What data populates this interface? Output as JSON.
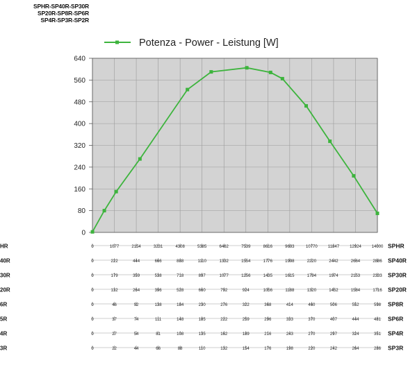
{
  "models_title": [
    "SPHR-SP40R-SP30R",
    "SP20R-SP8R-SP6R",
    "SP4R-SP3R-SP2R"
  ],
  "colors": {
    "line": "#3db43d",
    "plot_bg": "#d3d3d3",
    "grid": "#9a9a9a",
    "axis": "#555555"
  },
  "chart_data": {
    "type": "line",
    "legend_position": "top",
    "grid": true,
    "series": [
      {
        "name": "Potenza - Power - Leistung [W]",
        "color": "#3db43d",
        "points": [
          {
            "x": 0,
            "y": 2
          },
          {
            "x": 1,
            "y": 80
          },
          {
            "x": 2,
            "y": 150
          },
          {
            "x": 4,
            "y": 270
          },
          {
            "x": 8,
            "y": 525
          },
          {
            "x": 10,
            "y": 590
          },
          {
            "x": 13,
            "y": 605
          },
          {
            "x": 15,
            "y": 588
          },
          {
            "x": 16,
            "y": 565
          },
          {
            "x": 18,
            "y": 465
          },
          {
            "x": 20,
            "y": 335
          },
          {
            "x": 22,
            "y": 208
          },
          {
            "x": 24,
            "y": 70
          }
        ]
      }
    ],
    "x_range": [
      0,
      24
    ],
    "y_ticks": [
      "640",
      "560",
      "480",
      "400",
      "320",
      "240",
      "160",
      "80",
      "0"
    ],
    "ylim": [
      0,
      640
    ],
    "scale_rows": [
      {
        "label": "SPHR",
        "values": [
          "0",
          "1077",
          "2154",
          "3231",
          "4308",
          "5385",
          "6462",
          "7539",
          "8616",
          "9693",
          "10770",
          "11847",
          "12924",
          "14000"
        ]
      },
      {
        "label": "SP40R",
        "values": [
          "0",
          "222",
          "444",
          "666",
          "888",
          "1110",
          "1332",
          "1554",
          "1776",
          "1998",
          "2220",
          "2442",
          "2664",
          "2886"
        ]
      },
      {
        "label": "SP30R",
        "values": [
          "0",
          "179",
          "359",
          "538",
          "718",
          "897",
          "1077",
          "1256",
          "1435",
          "1615",
          "1794",
          "1974",
          "2153",
          "2333"
        ]
      },
      {
        "label": "SP20R",
        "values": [
          "0",
          "132",
          "264",
          "396",
          "528",
          "660",
          "792",
          "924",
          "1056",
          "1188",
          "1320",
          "1452",
          "1584",
          "1716"
        ]
      },
      {
        "label": "SP8R",
        "values": [
          "0",
          "46",
          "92",
          "138",
          "184",
          "230",
          "276",
          "322",
          "368",
          "414",
          "460",
          "506",
          "552",
          "598"
        ]
      },
      {
        "label": "SP6R",
        "values": [
          "0",
          "37",
          "74",
          "111",
          "148",
          "185",
          "222",
          "259",
          "296",
          "333",
          "370",
          "407",
          "444",
          "481"
        ]
      },
      {
        "label": "SP4R",
        "values": [
          "0",
          "27",
          "54",
          "81",
          "108",
          "135",
          "162",
          "189",
          "216",
          "243",
          "270",
          "297",
          "324",
          "351"
        ]
      },
      {
        "label": "SP3R",
        "values": [
          "0",
          "22",
          "44",
          "66",
          "88",
          "110",
          "132",
          "154",
          "176",
          "198",
          "220",
          "242",
          "264",
          "286"
        ]
      }
    ],
    "left_row_labels": [
      "HR",
      "40R",
      "30R",
      "20R",
      "6R",
      "5R",
      "4R",
      "3R"
    ]
  }
}
